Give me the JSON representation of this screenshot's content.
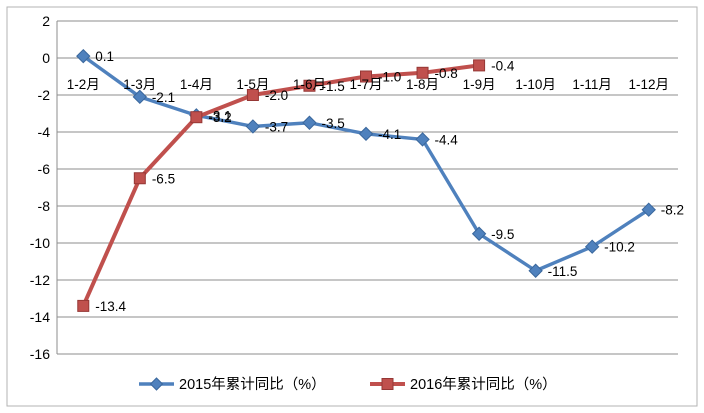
{
  "figure": {
    "background": "#ffffff",
    "border_color": "#b3b3b3"
  },
  "chart_data": {
    "type": "line",
    "title": "",
    "xlabel": "",
    "ylabel": "",
    "categories": [
      "1-2月",
      "1-3月",
      "1-4月",
      "1-5月",
      "1-6月",
      "1-7月",
      "1-8月",
      "1-9月",
      "1-10月",
      "1-11月",
      "1-12月"
    ],
    "series": [
      {
        "name": "2015年累计同比（%）",
        "color": "#4f81bd",
        "edge_color": "#3a679c",
        "marker": "diamond",
        "values": [
          0.1,
          -2.1,
          -3.1,
          -3.7,
          -3.5,
          -4.1,
          -4.4,
          -9.5,
          -11.5,
          -10.2,
          -8.2
        ],
        "point_labels": [
          "0.1",
          "-2.1",
          "-3.1",
          "-3.7",
          "-3.5",
          "-4.1",
          "-4.4",
          "-9.5",
          "-11.5",
          "-10.2",
          "-8.2"
        ]
      },
      {
        "name": "2016年累计同比（%）",
        "color": "#c0504d",
        "edge_color": "#953735",
        "marker": "square",
        "values": [
          -13.4,
          -6.5,
          -3.2,
          -2.0,
          -1.5,
          -1.0,
          -0.8,
          -0.4
        ],
        "point_labels": [
          "-13.4",
          "-6.5",
          "-3.2",
          "-2.0",
          "-1.5",
          "-1.0",
          "-0.8",
          "-0.4"
        ]
      }
    ],
    "ylim": [
      -16,
      2
    ],
    "yticks": [
      2,
      0,
      -2,
      -4,
      -6,
      -8,
      -10,
      -12,
      -14,
      -16
    ],
    "ytick_labels": [
      "2",
      "0",
      "-2",
      "-4",
      "-6",
      "-8",
      "-10",
      "-12",
      "-14",
      "-16"
    ],
    "grid": "horizontal",
    "gridline_color": "#8e8e8e",
    "text_color": "#000000",
    "legend_position": "bottom"
  }
}
